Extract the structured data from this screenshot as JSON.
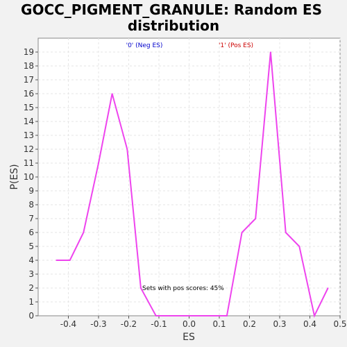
{
  "chart_data": {
    "type": "line",
    "title_line1": "GOCC_PIGMENT_GRANULE: Random ES",
    "title_line2": "distribution",
    "xlabel": "ES",
    "ylabel": "P(ES)",
    "xlim": [
      -0.5,
      0.5
    ],
    "ylim": [
      0,
      20
    ],
    "x_ticks": [
      -0.4,
      -0.3,
      -0.2,
      -0.1,
      0.0,
      0.1,
      0.2,
      0.3,
      0.4,
      0.5
    ],
    "x_tick_labels": [
      "-0.4",
      "-0.3",
      "-0.2",
      "-0.1",
      "0.0",
      "0.1",
      "0.2",
      "0.3",
      "0.4",
      "0.5"
    ],
    "y_ticks": [
      0,
      1,
      2,
      3,
      4,
      5,
      6,
      7,
      8,
      9,
      10,
      11,
      12,
      13,
      14,
      15,
      16,
      17,
      18,
      19
    ],
    "grid": true,
    "legend": [
      {
        "label": "'0' (Neg ES)",
        "color": "#0000cc"
      },
      {
        "label": "'1' (Pos ES)",
        "color": "#cc0000"
      }
    ],
    "annotation": "Sets with pos scores: 45%",
    "series": [
      {
        "color": "#ee44ee",
        "x": [
          -0.44,
          -0.395,
          -0.35,
          -0.3,
          -0.255,
          -0.205,
          -0.16,
          -0.11,
          -0.065,
          -0.02,
          0.025,
          0.075,
          0.125,
          0.175,
          0.22,
          0.27,
          0.32,
          0.365,
          0.415,
          0.46
        ],
        "y": [
          4,
          4,
          6,
          11,
          16,
          12,
          2,
          0,
          0,
          0,
          0,
          0,
          0,
          6,
          7,
          19,
          6,
          5,
          0,
          2
        ]
      }
    ]
  }
}
